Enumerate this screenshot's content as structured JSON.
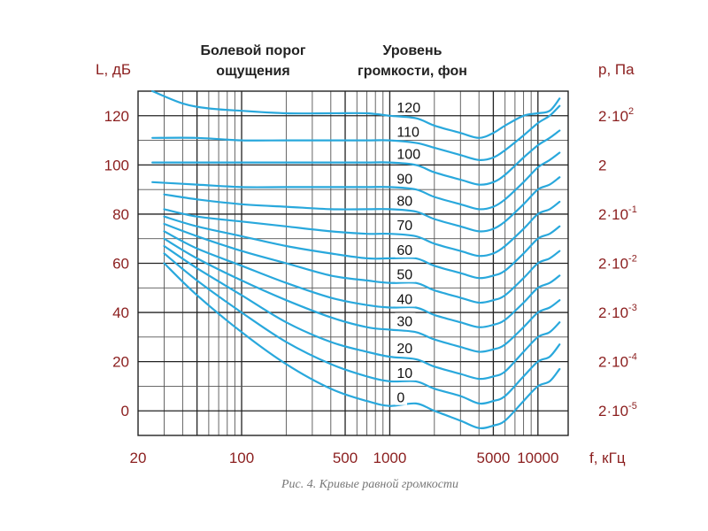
{
  "chart_data": {
    "type": "line",
    "y_left_label": "L, дБ",
    "y_right_label": "p, Па",
    "x_label": "f, кГц",
    "header_pain": [
      "Болевой порог",
      "ощущения"
    ],
    "header_level": [
      "Уровень",
      "громкости, фон"
    ],
    "caption": "Рис. 4. Кривые равной громкости",
    "x_scale": "log",
    "xlim": [
      20,
      16000
    ],
    "ylim": [
      -10,
      130
    ],
    "grid": true,
    "x_ticks": [
      {
        "value": 20,
        "label": "20"
      },
      {
        "value": 100,
        "label": "100"
      },
      {
        "value": 500,
        "label": "500"
      },
      {
        "value": 1000,
        "label": "1000"
      },
      {
        "value": 5000,
        "label": "5000"
      },
      {
        "value": 10000,
        "label": "10000"
      }
    ],
    "y_ticks": [
      {
        "value": 0,
        "label": "0"
      },
      {
        "value": 20,
        "label": "20"
      },
      {
        "value": 40,
        "label": "40"
      },
      {
        "value": 60,
        "label": "60"
      },
      {
        "value": 80,
        "label": "80"
      },
      {
        "value": 100,
        "label": "100"
      },
      {
        "value": 120,
        "label": "120"
      }
    ],
    "right_ticks": [
      {
        "value": 0,
        "base": "2·10",
        "exp": "-5"
      },
      {
        "value": 20,
        "base": "2·10",
        "exp": "-4"
      },
      {
        "value": 40,
        "base": "2·10",
        "exp": "-3"
      },
      {
        "value": 60,
        "base": "2·10",
        "exp": "-2"
      },
      {
        "value": 80,
        "base": "2·10",
        "exp": "-1"
      },
      {
        "value": 100,
        "base": "2",
        "exp": ""
      },
      {
        "value": 120,
        "base": "2·10",
        "exp": "2"
      }
    ],
    "curve_label_x": 1000,
    "series": [
      {
        "name": "0",
        "x": [
          30,
          50,
          100,
          200,
          400,
          700,
          1000,
          1500,
          2000,
          3000,
          4000,
          5000,
          6000,
          8000,
          10000,
          12000,
          14000
        ],
        "y": [
          60,
          47,
          32,
          19,
          9,
          4,
          2,
          3,
          0,
          -4,
          -7,
          -6,
          -4,
          4,
          10,
          12,
          17
        ]
      },
      {
        "name": "10",
        "x": [
          30,
          50,
          100,
          200,
          400,
          700,
          1000,
          1500,
          2000,
          3000,
          4000,
          5000,
          6000,
          8000,
          10000,
          12000,
          14000
        ],
        "y": [
          64,
          53,
          40,
          28,
          19,
          14,
          12,
          12,
          9,
          6,
          3,
          4,
          6,
          14,
          20,
          22,
          27
        ]
      },
      {
        "name": "20",
        "x": [
          30,
          50,
          100,
          200,
          400,
          700,
          1000,
          1500,
          2000,
          3000,
          4000,
          5000,
          6000,
          8000,
          10000,
          12000,
          14000
        ],
        "y": [
          67,
          58,
          47,
          36,
          28,
          24,
          22,
          21,
          18,
          15,
          13,
          14,
          16,
          24,
          30,
          32,
          36
        ]
      },
      {
        "name": "30",
        "x": [
          30,
          50,
          100,
          200,
          400,
          700,
          1000,
          1500,
          2000,
          3000,
          4000,
          5000,
          6000,
          8000,
          10000,
          12000,
          14000
        ],
        "y": [
          70,
          62,
          53,
          45,
          38,
          34,
          33,
          32,
          29,
          26,
          24,
          25,
          27,
          34,
          40,
          42,
          45
        ]
      },
      {
        "name": "40",
        "x": [
          30,
          50,
          100,
          200,
          400,
          700,
          1000,
          1500,
          2000,
          3000,
          4000,
          5000,
          6000,
          8000,
          10000,
          12000,
          14000
        ],
        "y": [
          73,
          66,
          59,
          52,
          46,
          43,
          42,
          42,
          39,
          36,
          34,
          35,
          37,
          44,
          50,
          52,
          55
        ]
      },
      {
        "name": "50",
        "x": [
          30,
          50,
          100,
          200,
          400,
          700,
          1000,
          1500,
          2000,
          3000,
          4000,
          5000,
          6000,
          8000,
          10000,
          12000,
          14000
        ],
        "y": [
          76,
          71,
          65,
          60,
          55,
          53,
          52,
          52,
          49,
          46,
          44,
          45,
          47,
          54,
          60,
          62,
          65
        ]
      },
      {
        "name": "60",
        "x": [
          30,
          50,
          100,
          200,
          400,
          700,
          1000,
          1500,
          2000,
          3000,
          4000,
          5000,
          6000,
          8000,
          10000,
          12000,
          14000
        ],
        "y": [
          79,
          75,
          71,
          67,
          64,
          62,
          62,
          62,
          59,
          56,
          54,
          55,
          57,
          64,
          70,
          72,
          75
        ]
      },
      {
        "name": "70",
        "x": [
          30,
          50,
          100,
          200,
          400,
          700,
          1000,
          1500,
          2000,
          3000,
          4000,
          5000,
          6000,
          8000,
          10000,
          12000,
          14000
        ],
        "y": [
          82,
          79,
          77,
          75,
          73,
          72,
          72,
          71,
          68,
          65,
          63,
          64,
          67,
          74,
          80,
          82,
          85
        ]
      },
      {
        "name": "80",
        "x": [
          30,
          50,
          100,
          200,
          400,
          700,
          1000,
          1500,
          2000,
          3000,
          4000,
          5000,
          6000,
          8000,
          10000,
          12000,
          14000
        ],
        "y": [
          88,
          86,
          84,
          83,
          82,
          82,
          82,
          81,
          78,
          75,
          73,
          74,
          77,
          84,
          90,
          92,
          95
        ]
      },
      {
        "name": "90",
        "x": [
          25,
          50,
          100,
          200,
          400,
          700,
          1000,
          1500,
          2000,
          3000,
          4000,
          5000,
          6000,
          8000,
          10000,
          12000,
          14000
        ],
        "y": [
          93,
          92,
          91,
          91,
          91,
          91,
          91,
          90,
          87,
          84,
          82,
          83,
          86,
          93,
          99,
          102,
          105
        ]
      },
      {
        "name": "100",
        "x": [
          25,
          50,
          100,
          200,
          400,
          700,
          1000,
          1500,
          2000,
          3000,
          4000,
          5000,
          6000,
          8000,
          10000,
          12000,
          14000
        ],
        "y": [
          101,
          101,
          101,
          101,
          101,
          101,
          101,
          100,
          97,
          94,
          92,
          93,
          96,
          103,
          108,
          111,
          114
        ]
      },
      {
        "name": "110",
        "x": [
          25,
          50,
          100,
          200,
          400,
          700,
          1000,
          1500,
          2000,
          3000,
          4000,
          5000,
          6000,
          8000,
          10000,
          12000,
          14000
        ],
        "y": [
          111,
          111,
          110,
          110,
          110,
          110,
          110,
          109,
          107,
          104,
          102,
          103,
          106,
          112,
          117,
          120,
          124
        ]
      },
      {
        "name": "120",
        "x": [
          25,
          40,
          60,
          100,
          200,
          400,
          700,
          1000,
          1500,
          2000,
          3000,
          4000,
          5000,
          6000,
          8000,
          10000,
          12000,
          14000
        ],
        "y": [
          130,
          125,
          123,
          122,
          121,
          121,
          121,
          120,
          119,
          116,
          113,
          111,
          113,
          116,
          120,
          121,
          122,
          127
        ]
      }
    ],
    "series_color": "#29a8dc",
    "axis_label_color": "#8b1e1e",
    "grid_color": "#222222"
  }
}
